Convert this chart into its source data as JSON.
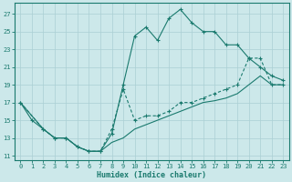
{
  "xlabel": "Humidex (Indice chaleur)",
  "bg_color": "#cce8ea",
  "grid_color": "#aacfd4",
  "line_color": "#1a7a6e",
  "xlim": [
    -0.5,
    23.5
  ],
  "ylim": [
    10.5,
    28.2
  ],
  "xticks": [
    0,
    1,
    2,
    3,
    4,
    5,
    6,
    7,
    8,
    9,
    10,
    11,
    12,
    13,
    14,
    15,
    16,
    17,
    18,
    19,
    20,
    21,
    22,
    23
  ],
  "yticks": [
    11,
    13,
    15,
    17,
    19,
    21,
    23,
    25,
    27
  ],
  "line1_x": [
    0,
    1,
    2,
    3,
    4,
    5,
    6,
    7,
    8,
    9,
    10,
    11,
    12,
    13,
    14,
    15,
    16,
    17,
    18,
    19,
    20,
    21,
    22,
    23
  ],
  "line1_y": [
    17,
    15,
    14,
    13,
    13,
    12,
    11.5,
    11.5,
    13.5,
    19,
    24.5,
    25.5,
    24,
    26.5,
    27.5,
    26,
    25,
    25,
    23.5,
    23.5,
    22,
    21,
    20,
    19.5
  ],
  "line2_x": [
    0,
    2,
    3,
    4,
    5,
    6,
    7,
    8,
    9,
    10,
    11,
    12,
    13,
    14,
    15,
    16,
    17,
    18,
    19,
    20,
    21,
    22,
    23
  ],
  "line2_y": [
    17,
    14,
    13,
    13,
    12,
    11.5,
    11.5,
    14,
    18.5,
    15,
    15.5,
    15.5,
    16,
    17,
    17,
    17.5,
    18,
    18.5,
    19,
    22,
    22,
    19,
    19
  ],
  "line3_x": [
    0,
    2,
    3,
    4,
    5,
    6,
    7,
    8,
    9,
    10,
    11,
    12,
    13,
    14,
    15,
    16,
    17,
    18,
    19,
    20,
    21,
    22,
    23
  ],
  "line3_y": [
    17,
    14,
    13,
    13,
    12,
    11.5,
    11.5,
    12.5,
    13,
    14,
    14.5,
    15,
    15.5,
    16,
    16.5,
    17,
    17.2,
    17.5,
    18,
    19,
    20,
    19,
    19
  ]
}
